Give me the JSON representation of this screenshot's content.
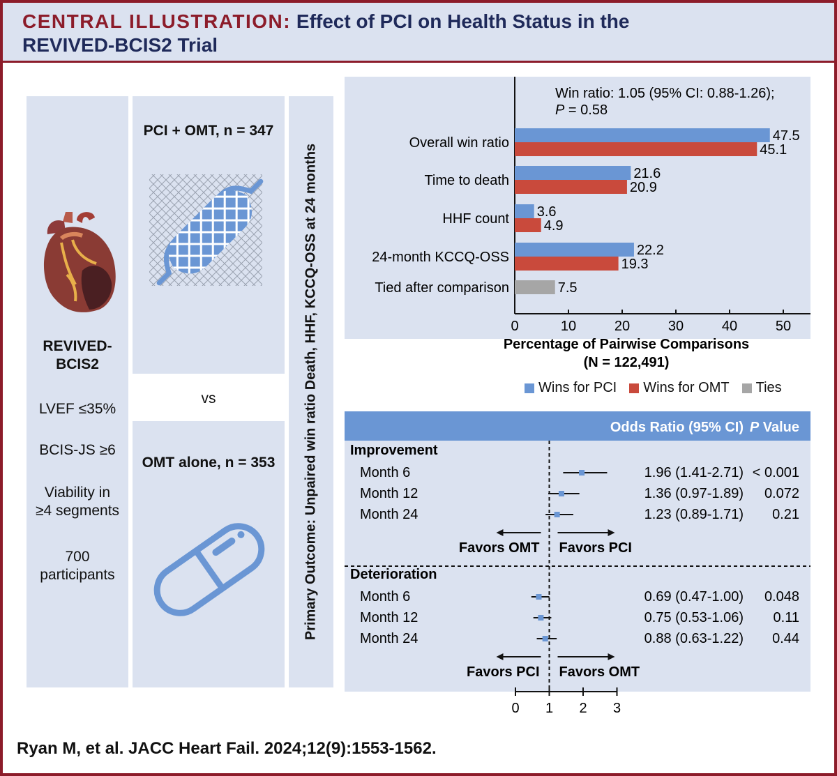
{
  "header": {
    "prefix": "CENTRAL ILLUSTRATION:",
    "title_line1": "Effect of PCI on Health Status in the",
    "title_line2": "REVIVED-BCIS2 Trial"
  },
  "trial": {
    "name_line1": "REVIVED-",
    "name_line2": "BCIS2",
    "criteria": [
      "LVEF ≤35%",
      "BCIS-JS ≥6"
    ],
    "viability_line1": "Viability in",
    "viability_line2": "≥4 segments",
    "participants_line1": "700",
    "participants_line2": "participants"
  },
  "arms": {
    "pci": "PCI + OMT, n = 347",
    "vs": "vs",
    "omt": "OMT alone, n = 353"
  },
  "primary_outcome": "Primary Outcome: Unpaired win ratio Death, HHF, KCCQ-OSS at 24 months",
  "colors": {
    "pci": "#6a96d4",
    "omt": "#c94a3c",
    "ties": "#a6a6a6",
    "header_bg": "#dbe2f0",
    "accent": "#8c1c2a",
    "table_header": "#6a96d4"
  },
  "chart_data": [
    {
      "type": "bar",
      "orientation": "horizontal",
      "annotation_line1": "Win ratio: 1.05 (95% CI: 0.88-1.26);",
      "annotation_p_label": "P",
      "annotation_p_value": " = 0.58",
      "categories": [
        "Overall win ratio",
        "Time to death",
        "HHF count",
        "24-month KCCQ-OSS",
        "Tied after comparison"
      ],
      "series": [
        {
          "name": "Wins for PCI",
          "values": [
            47.5,
            21.6,
            3.6,
            22.2,
            null
          ]
        },
        {
          "name": "Wins for OMT",
          "values": [
            45.1,
            20.9,
            4.9,
            19.3,
            null
          ]
        },
        {
          "name": "Ties",
          "values": [
            null,
            null,
            null,
            null,
            7.5
          ]
        }
      ],
      "xlabel_line1": "Percentage of Pairwise Comparisons",
      "xlabel_line2": "(N = 122,491)",
      "xlim": [
        0,
        55
      ],
      "xticks": [
        0,
        10,
        20,
        30,
        40,
        50
      ],
      "legend": [
        "Wins for PCI",
        "Wins for OMT",
        "Ties"
      ]
    },
    {
      "type": "forest",
      "header_or": "Odds Ratio (95% CI)",
      "header_p": "P",
      "header_value": " Value",
      "xlim": [
        0,
        3
      ],
      "xticks": [
        0,
        1,
        2,
        3
      ],
      "reference": 1,
      "groups": [
        {
          "name": "Improvement",
          "favors_left": "Favors OMT",
          "favors_right": "Favors PCI",
          "rows": [
            {
              "label": "Month 6",
              "or": 1.96,
              "lo": 1.41,
              "hi": 2.71,
              "text": "1.96 (1.41-2.71)",
              "p": "< 0.001"
            },
            {
              "label": "Month 12",
              "or": 1.36,
              "lo": 0.97,
              "hi": 1.89,
              "text": "1.36 (0.97-1.89)",
              "p": "0.072"
            },
            {
              "label": "Month 24",
              "or": 1.23,
              "lo": 0.89,
              "hi": 1.71,
              "text": "1.23 (0.89-1.71)",
              "p": "0.21"
            }
          ]
        },
        {
          "name": "Deterioration",
          "favors_left": "Favors PCI",
          "favors_right": "Favors OMT",
          "rows": [
            {
              "label": "Month 6",
              "or": 0.69,
              "lo": 0.47,
              "hi": 1.0,
              "text": "0.69 (0.47-1.00)",
              "p": "0.048"
            },
            {
              "label": "Month 12",
              "or": 0.75,
              "lo": 0.53,
              "hi": 1.06,
              "text": "0.75 (0.53-1.06)",
              "p": "0.11"
            },
            {
              "label": "Month 24",
              "or": 0.88,
              "lo": 0.63,
              "hi": 1.22,
              "text": "0.88 (0.63-1.22)",
              "p": "0.44"
            }
          ]
        }
      ]
    }
  ],
  "citation": "Ryan M, et al. JACC Heart Fail. 2024;12(9):1553-1562."
}
